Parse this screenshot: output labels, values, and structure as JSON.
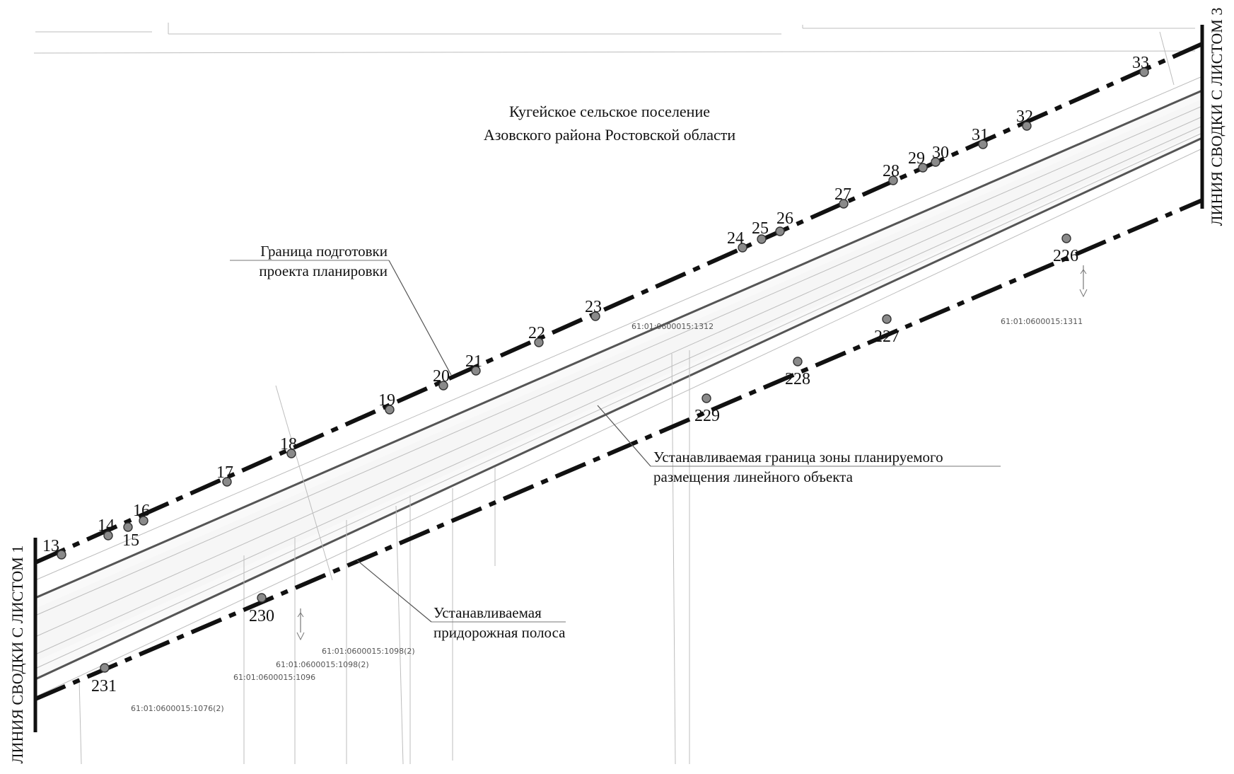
{
  "sheet": {
    "settlement_title": {
      "line1": "Кугейское сельское поселение",
      "line2": "Азовского района Ростовской области"
    },
    "callouts": {
      "planning_boundary": {
        "line1": "Граница  подготовки",
        "line2": "проекта планировки"
      },
      "linear_object_zone": {
        "line1": "Устанавливаемая граница зоны планируемого",
        "line2": "размещения линейного объекта"
      },
      "roadside_strip": {
        "line1": "Устанавливаемая",
        "line2": "придорожная полоса"
      }
    },
    "match_lines": {
      "left": "ЛИНИЯ СВОДКИ С ЛИСТОМ 1",
      "right": "ЛИНИЯ СВОДКИ С ЛИСТОМ 3"
    },
    "cadastral_numbers": [
      "61:01:0600015:1312",
      "61:01:0600015:1311",
      "61:01:0600015:1098(2)",
      "61:01:0600015:1098(2)",
      "61:01:0600015:1096",
      "61:01:0600015:1076(2)"
    ],
    "upper_boundary_points": [
      "13",
      "14",
      "15",
      "16",
      "17",
      "18",
      "19",
      "20",
      "21",
      "22",
      "23",
      "24",
      "25",
      "26",
      "27",
      "28",
      "29",
      "30",
      "31",
      "32",
      "33"
    ],
    "lower_boundary_points": [
      "226",
      "227",
      "228",
      "229",
      "230",
      "231"
    ],
    "colors": {
      "line": "#111111",
      "point": "#8a8a8a",
      "road": "#555555",
      "background": "#ffffff"
    }
  }
}
